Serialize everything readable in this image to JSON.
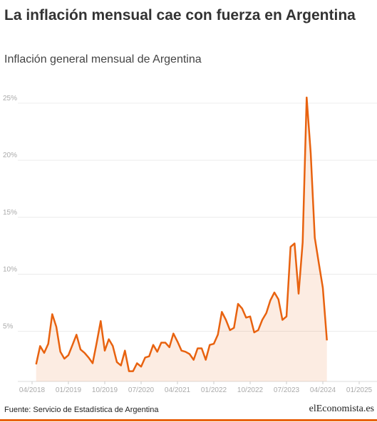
{
  "header": {
    "title": "La inflación mensual cae con fuerza en Argentina",
    "subtitle": "Inflación general mensual de Argentina"
  },
  "chart_data": {
    "type": "line",
    "color": "#e8620f",
    "area": true,
    "grid": true,
    "x": [
      "05/2018",
      "06/2018",
      "07/2018",
      "08/2018",
      "09/2018",
      "10/2018",
      "11/2018",
      "12/2018",
      "01/2019",
      "02/2019",
      "03/2019",
      "04/2019",
      "05/2019",
      "06/2019",
      "07/2019",
      "08/2019",
      "09/2019",
      "10/2019",
      "11/2019",
      "12/2019",
      "01/2020",
      "02/2020",
      "03/2020",
      "04/2020",
      "05/2020",
      "06/2020",
      "07/2020",
      "08/2020",
      "09/2020",
      "10/2020",
      "11/2020",
      "12/2020",
      "01/2021",
      "02/2021",
      "03/2021",
      "04/2021",
      "05/2021",
      "06/2021",
      "07/2021",
      "08/2021",
      "09/2021",
      "10/2021",
      "11/2021",
      "12/2021",
      "01/2022",
      "02/2022",
      "03/2022",
      "04/2022",
      "05/2022",
      "06/2022",
      "07/2022",
      "08/2022",
      "09/2022",
      "10/2022",
      "11/2022",
      "12/2022",
      "01/2023",
      "02/2023",
      "03/2023",
      "04/2023",
      "05/2023",
      "06/2023",
      "07/2023",
      "08/2023",
      "09/2023",
      "10/2023",
      "11/2023",
      "12/2023",
      "01/2024",
      "02/2024",
      "03/2024",
      "04/2024",
      "05/2024"
    ],
    "values": [
      2.1,
      3.7,
      3.1,
      3.9,
      6.5,
      5.4,
      3.2,
      2.6,
      2.9,
      3.8,
      4.7,
      3.4,
      3.1,
      2.7,
      2.2,
      4.0,
      5.9,
      3.3,
      4.3,
      3.7,
      2.3,
      2.0,
      3.3,
      1.5,
      1.5,
      2.2,
      1.9,
      2.7,
      2.8,
      3.8,
      3.2,
      4.0,
      4.0,
      3.6,
      4.8,
      4.1,
      3.3,
      3.2,
      3.0,
      2.5,
      3.5,
      3.5,
      2.5,
      3.8,
      3.9,
      4.7,
      6.7,
      6.0,
      5.1,
      5.3,
      7.4,
      7.0,
      6.2,
      6.3,
      4.9,
      5.1,
      6.0,
      6.6,
      7.7,
      8.4,
      7.8,
      6.0,
      6.3,
      12.4,
      12.7,
      8.3,
      12.8,
      25.5,
      20.6,
      13.2,
      11.0,
      8.8,
      4.2
    ],
    "xticks": [
      "04/2018",
      "01/2019",
      "10/2019",
      "07/2020",
      "04/2021",
      "01/2022",
      "10/2022",
      "07/2023",
      "04/2024",
      "01/2025"
    ],
    "ylim": [
      0.6,
      26
    ],
    "yticks": [
      {
        "value": 5,
        "label": "5%"
      },
      {
        "value": 10,
        "label": "10%"
      },
      {
        "value": 15,
        "label": "15%"
      },
      {
        "value": 20,
        "label": "20%"
      },
      {
        "value": 25,
        "label": "25%"
      }
    ]
  },
  "footer": {
    "source": "Fuente: Servicio de Estadística de Argentina",
    "logo": "elEconomista.es"
  }
}
